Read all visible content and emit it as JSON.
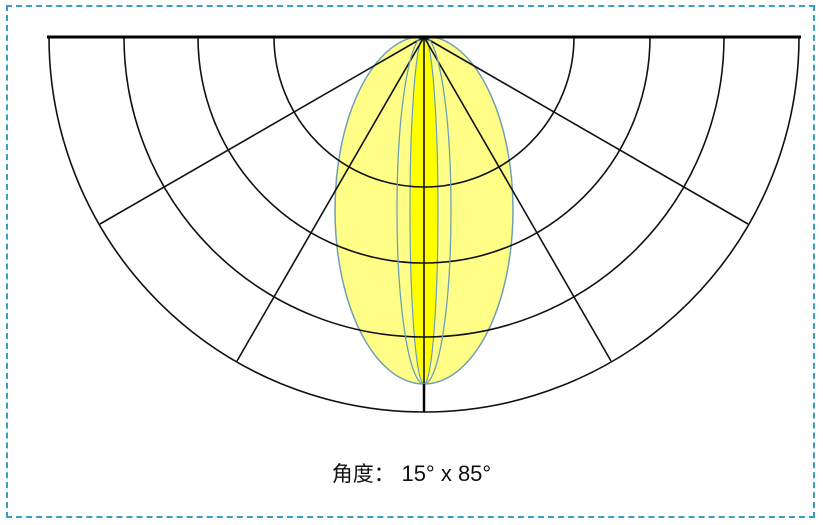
{
  "caption": {
    "label": "角度：",
    "value": "15° x 85°"
  },
  "beam": {
    "horizontal_angle_deg": 15,
    "vertical_angle_deg": 85,
    "fill_color": "#ffff88",
    "core_color": "#ffff00",
    "outline_color": "#6f9fb7"
  },
  "polar_grid": {
    "ring_count": 5,
    "radial_angles_deg": [
      30,
      60,
      90,
      120,
      150
    ]
  },
  "frame": {
    "border_color": "#3a9ec2"
  }
}
